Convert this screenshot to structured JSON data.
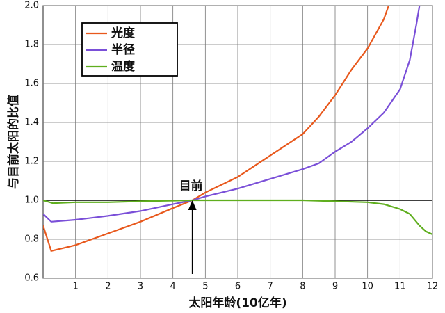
{
  "chart_data": {
    "type": "line",
    "xlabel": "太阳年龄(10亿年)",
    "ylabel": "与目前太阳的比值",
    "xlim": [
      0,
      12
    ],
    "ylim": [
      0.6,
      2.0
    ],
    "xticks": [
      1,
      2,
      3,
      4,
      5,
      6,
      7,
      8,
      9,
      10,
      11,
      12
    ],
    "yticks": [
      0.6,
      0.8,
      {
        "value": 1,
        "label": "1.0"
      },
      1.2,
      1.4,
      1.6,
      1.8,
      {
        "value": 2,
        "label": "2.0"
      }
    ],
    "grid": true,
    "reference_line": 1,
    "legend": "upper left",
    "annotation": {
      "text": "目前",
      "x": 4.6,
      "y": 1
    },
    "series": [
      {
        "name": "光度",
        "color": "#e8581c",
        "x": [
          0,
          0.25,
          1,
          2,
          3,
          4,
          4.6,
          5,
          6,
          7,
          8,
          8.5,
          9,
          9.5,
          10,
          10.5,
          10.65
        ],
        "values": [
          0.87,
          0.74,
          0.77,
          0.83,
          0.89,
          0.96,
          1.0,
          1.04,
          1.12,
          1.23,
          1.34,
          1.43,
          1.54,
          1.67,
          1.78,
          1.93,
          2.0
        ]
      },
      {
        "name": "半径",
        "color": "#7a4fd8",
        "x": [
          0,
          0.25,
          1,
          2,
          3,
          4,
          4.6,
          5,
          6,
          7,
          8,
          8.5,
          9,
          9.5,
          10,
          10.5,
          11,
          11.3,
          11.5,
          11.6
        ],
        "values": [
          0.93,
          0.89,
          0.9,
          0.92,
          0.945,
          0.98,
          1.0,
          1.02,
          1.06,
          1.11,
          1.16,
          1.19,
          1.25,
          1.3,
          1.37,
          1.45,
          1.57,
          1.72,
          1.9,
          2.0
        ]
      },
      {
        "name": "温度",
        "color": "#5fae1e",
        "x": [
          0,
          0.3,
          1,
          2,
          3,
          4,
          4.6,
          6,
          7,
          8,
          9,
          10,
          10.5,
          11,
          11.3,
          11.6,
          11.8,
          12
        ],
        "values": [
          1.0,
          0.985,
          0.99,
          0.99,
          0.995,
          0.998,
          1.0,
          1.0,
          1.0,
          1.0,
          0.995,
          0.99,
          0.98,
          0.955,
          0.93,
          0.87,
          0.84,
          0.825
        ]
      }
    ]
  }
}
